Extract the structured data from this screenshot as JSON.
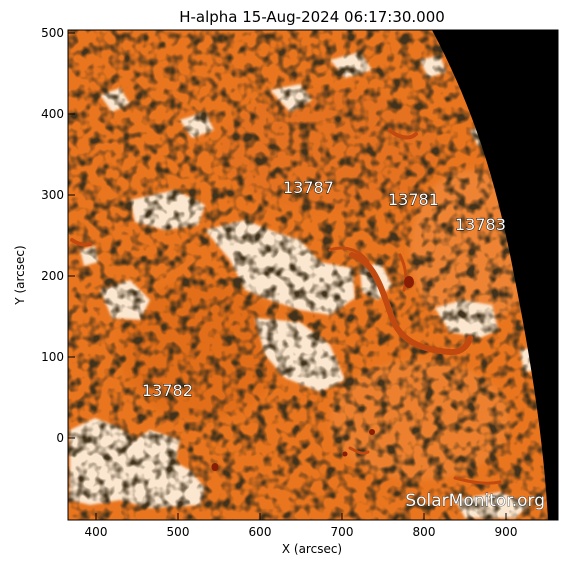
{
  "title": "H-alpha 15-Aug-2024 06:17:30.000",
  "x_axis": {
    "label": "X (arcsec)",
    "ticks": [
      "400",
      "500",
      "600",
      "700",
      "800",
      "900"
    ],
    "range": [
      363,
      960
    ]
  },
  "y_axis": {
    "label": "Y (arcsec)",
    "ticks": [
      "500",
      "400",
      "300",
      "200",
      "100",
      "0"
    ],
    "range": [
      -97,
      507
    ]
  },
  "active_regions": [
    "13787",
    "13781",
    "13783",
    "13782"
  ],
  "watermark": "SolarMonitor.org",
  "colors": {
    "chromosphere": "#e9751f",
    "plage": "#fbe6cf",
    "dark_structure": "#2a1405",
    "space": "#000000"
  }
}
